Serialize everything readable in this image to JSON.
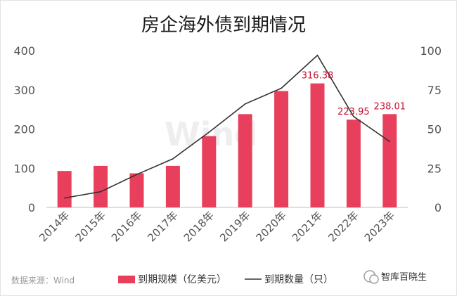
{
  "chart_data": {
    "type": "bar",
    "title": "房企海外债到期情况",
    "categories": [
      "2014年",
      "2015年",
      "2016年",
      "2017年",
      "2018年",
      "2019年",
      "2020年",
      "2021年",
      "2022年",
      "2023年"
    ],
    "series": [
      {
        "name": "到期规模（亿美元）",
        "type": "bar",
        "axis": "left",
        "color": "#e8405c",
        "values": [
          93,
          106,
          87,
          106,
          182,
          238,
          297,
          316.38,
          223.95,
          238.01
        ],
        "data_labels": [
          "",
          "",
          "",
          "",
          "",
          "",
          "",
          "316.38",
          "223.95",
          "238.01"
        ]
      },
      {
        "name": "到期数量（只）",
        "type": "line",
        "axis": "right",
        "color": "#333333",
        "values": [
          6,
          10,
          21,
          31,
          48,
          66,
          76,
          97,
          58,
          42
        ]
      }
    ],
    "y_left": {
      "min": 0,
      "max": 400,
      "ticks": [
        "0",
        "100",
        "200",
        "300",
        "400"
      ]
    },
    "y_right": {
      "min": 0,
      "max": 100,
      "ticks": [
        "0",
        "25",
        "50",
        "75",
        "100"
      ]
    },
    "grid": false,
    "legend_position": "bottom"
  },
  "source": "数据来源：Wind",
  "watermark": "智库百晓生",
  "background_watermark": "Wind",
  "icon": "wechat-channel-icon"
}
